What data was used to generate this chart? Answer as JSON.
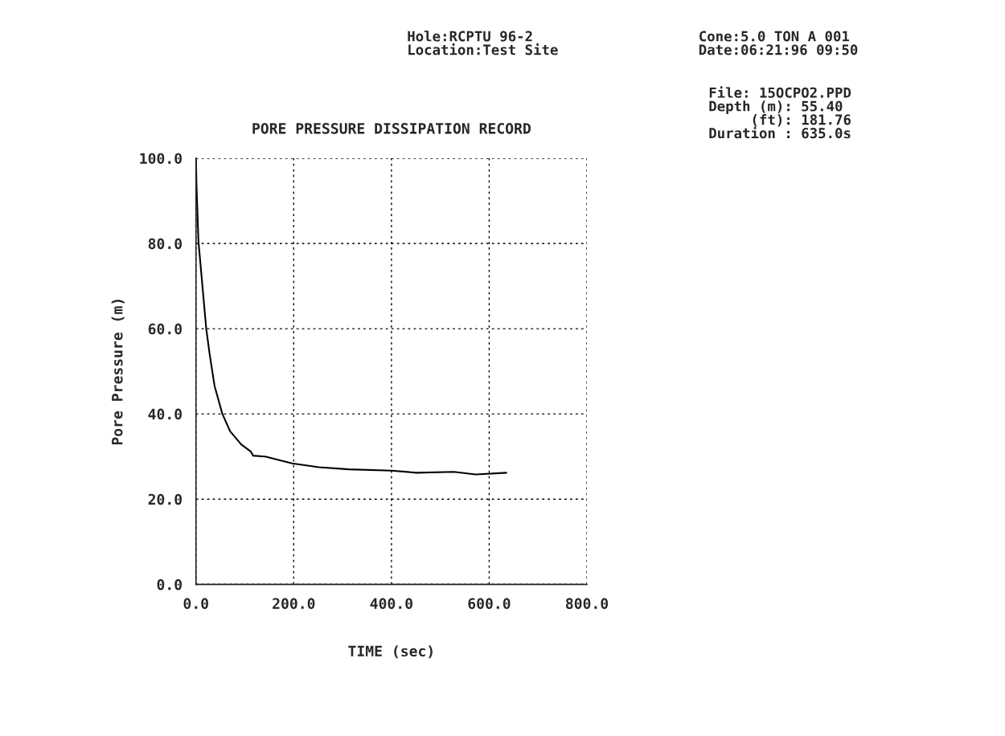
{
  "chart_data": {
    "type": "line",
    "title": "PORE PRESSURE DISSIPATION RECORD",
    "xlabel": "TIME (sec)",
    "ylabel": "Pore Pressure (m)",
    "x": [
      0,
      1,
      5,
      21,
      28,
      38,
      54,
      70,
      93,
      112,
      117,
      142,
      197,
      252,
      313,
      401,
      451,
      528,
      572,
      635
    ],
    "series": [
      {
        "color": "#000000",
        "values": [
          100,
          94,
          80.6,
          60,
          54,
          46.6,
          40,
          35.9,
          32.8,
          31.2,
          30.2,
          30.0,
          28.4,
          27.5,
          27.0,
          26.7,
          26.2,
          26.4,
          25.8,
          26.2
        ]
      }
    ],
    "xlim": [
      0,
      800
    ],
    "ylim": [
      0,
      100
    ],
    "xticks": [
      {
        "value": 0,
        "label": "0.0"
      },
      {
        "value": 200,
        "label": "200.0"
      },
      {
        "value": 400,
        "label": "400.0"
      },
      {
        "value": 600,
        "label": "600.0"
      },
      {
        "value": 800,
        "label": "800.0"
      }
    ],
    "yticks": [
      {
        "value": 0,
        "label": "0.0"
      },
      {
        "value": 20,
        "label": "20.0"
      },
      {
        "value": 40,
        "label": "40.0"
      },
      {
        "value": 60,
        "label": "60.0"
      },
      {
        "value": 80,
        "label": "80.0"
      },
      {
        "value": 100,
        "label": "100.0"
      }
    ],
    "grid": true,
    "line_style": "solid",
    "marker": "none",
    "annotations": [
      "Hole:RCPTU 96-2\nLocation:Test Site",
      "Cone:5.0 TON A 001\nDate:06:21:96 09:50",
      "File: 15OCPO2.PPD\nDepth (m): 55.40\n     (ft): 181.76\nDuration : 635.0s"
    ]
  }
}
